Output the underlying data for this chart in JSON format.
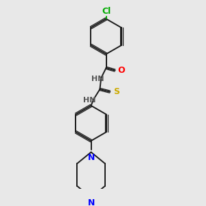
{
  "bg_color": "#e8e8e8",
  "bond_color": "#1a1a1a",
  "atom_colors": {
    "Cl": "#00aa00",
    "O": "#ff0000",
    "S": "#ccaa00",
    "N": "#0000ff",
    "H": "#555555",
    "C": "#1a1a1a"
  },
  "figsize": [
    3.0,
    3.0
  ],
  "dpi": 100
}
